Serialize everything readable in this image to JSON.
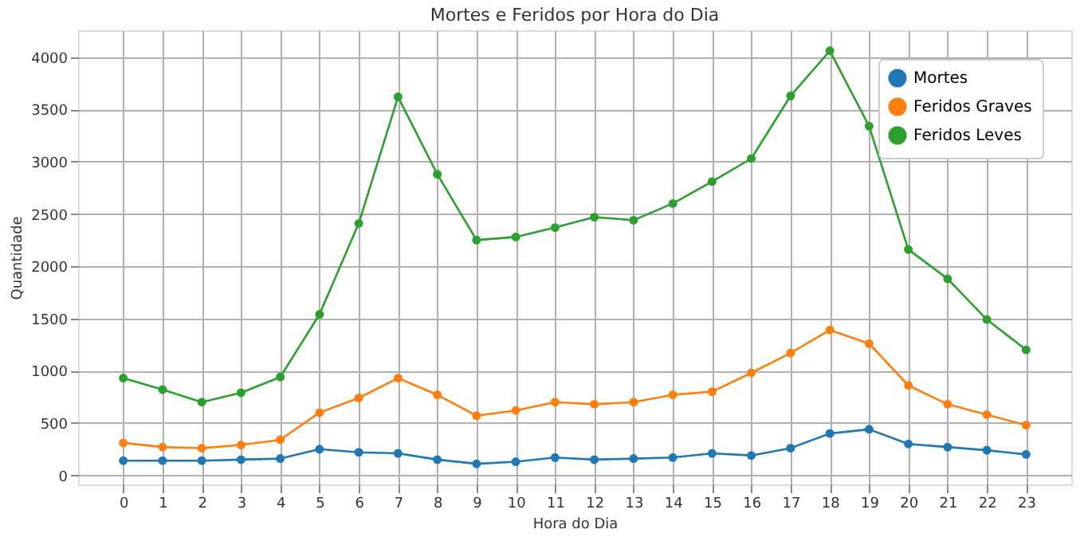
{
  "chart_data": {
    "type": "line",
    "title": "Mortes e Feridos por Hora do Dia",
    "xlabel": "Hora do Dia",
    "ylabel": "Quantidade",
    "x": [
      0,
      1,
      2,
      3,
      4,
      5,
      6,
      7,
      8,
      9,
      10,
      11,
      12,
      13,
      14,
      15,
      16,
      17,
      18,
      19,
      20,
      21,
      22,
      23
    ],
    "series": [
      {
        "name": "Mortes",
        "color": "#1f77b4",
        "values": [
          140,
          140,
          140,
          150,
          160,
          250,
          220,
          210,
          150,
          110,
          130,
          170,
          150,
          160,
          170,
          210,
          190,
          260,
          400,
          440,
          300,
          270,
          240,
          200
        ]
      },
      {
        "name": "Feridos Graves",
        "color": "#ff7f0e",
        "values": [
          310,
          270,
          260,
          290,
          340,
          600,
          740,
          930,
          770,
          570,
          620,
          700,
          680,
          700,
          770,
          800,
          980,
          1170,
          1390,
          1260,
          860,
          680,
          580,
          480
        ]
      },
      {
        "name": "Feridos Leves",
        "color": "#2ca02c",
        "values": [
          930,
          820,
          700,
          790,
          940,
          1540,
          2410,
          3620,
          2880,
          2250,
          2280,
          2370,
          2470,
          2440,
          2600,
          2810,
          3030,
          3630,
          4060,
          3340,
          2160,
          1880,
          1490,
          1200
        ]
      }
    ],
    "xlim": [
      -1.15,
      24.15
    ],
    "ylim": [
      -87,
      4257
    ],
    "xticks": [
      0,
      1,
      2,
      3,
      4,
      5,
      6,
      7,
      8,
      9,
      10,
      11,
      12,
      13,
      14,
      15,
      16,
      17,
      18,
      19,
      20,
      21,
      22,
      23
    ],
    "yticks": [
      0,
      500,
      1000,
      1500,
      2000,
      2500,
      3000,
      3500,
      4000
    ],
    "grid": true,
    "legend": "top right",
    "marker": "circle",
    "line_style": "solid"
  }
}
